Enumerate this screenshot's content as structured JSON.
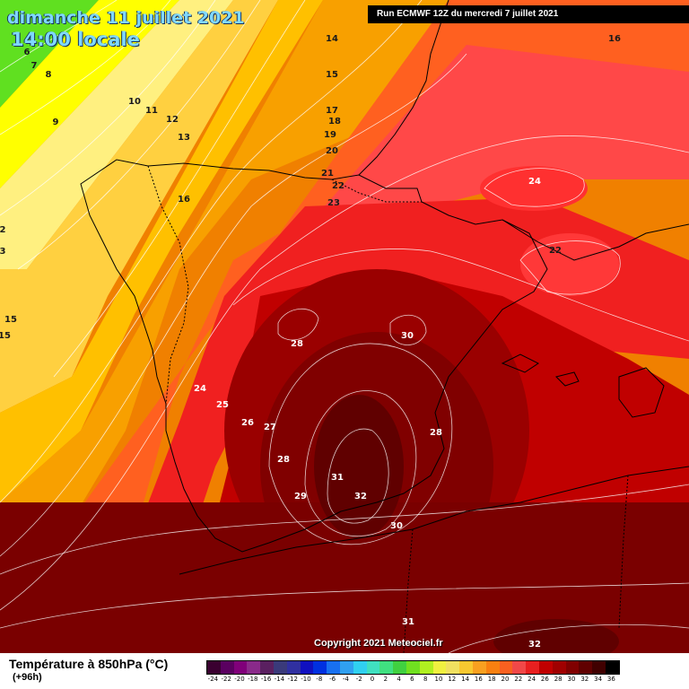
{
  "header": {
    "date": "dimanche 11 juillet 2021",
    "time": "14:00 locale",
    "run": "Run ECMWF 12Z du mercredi 7 juillet 2021"
  },
  "copyright": "Copyright 2021 Meteociel.fr",
  "legend": {
    "title": "Température à 850hPa (°C)",
    "subtitle": "(+96h)",
    "tick_labels": [
      "-24",
      "-22",
      "-20",
      "-18",
      "-16",
      "-14",
      "-12",
      "-10",
      "-8",
      "-6",
      "-4",
      "-2",
      "0",
      "2",
      "4",
      "6",
      "8",
      "10",
      "12",
      "14",
      "16",
      "18",
      "20",
      "22",
      "24",
      "26",
      "28",
      "30",
      "32",
      "34",
      "36"
    ],
    "colors": [
      "#3a0030",
      "#5a0060",
      "#80007a",
      "#8a2a8a",
      "#5a2060",
      "#3a3a7a",
      "#3030a0",
      "#1010c0",
      "#0030e0",
      "#1870f0",
      "#30a0f0",
      "#30d0f0",
      "#40e0c0",
      "#40e080",
      "#40d040",
      "#70e020",
      "#b0f020",
      "#f0f040",
      "#f0e060",
      "#f8c830",
      "#f8a020",
      "#f88010",
      "#f86020",
      "#f04848",
      "#e82020",
      "#c00000",
      "#a00000",
      "#800000",
      "#600000",
      "#400000",
      "#000000"
    ]
  },
  "contour_labels": [
    {
      "text": "6"
    },
    {
      "text": "7"
    },
    {
      "text": "8"
    },
    {
      "text": "9"
    },
    {
      "text": "10"
    },
    {
      "text": "11"
    },
    {
      "text": "12"
    },
    {
      "text": "13"
    },
    {
      "text": "14"
    },
    {
      "text": "15"
    },
    {
      "text": "16"
    },
    {
      "text": "16"
    },
    {
      "text": "17"
    },
    {
      "text": "18"
    },
    {
      "text": "19"
    },
    {
      "text": "20"
    },
    {
      "text": "21"
    },
    {
      "text": "22"
    },
    {
      "text": "23"
    },
    {
      "text": "24"
    },
    {
      "text": "22"
    },
    {
      "text": "2"
    },
    {
      "text": "3"
    },
    {
      "text": "15"
    },
    {
      "text": "15"
    },
    {
      "text": "24"
    },
    {
      "text": "25"
    },
    {
      "text": "26"
    },
    {
      "text": "27"
    },
    {
      "text": "28"
    },
    {
      "text": "28"
    },
    {
      "text": "29"
    },
    {
      "text": "30"
    },
    {
      "text": "31"
    },
    {
      "text": "32"
    },
    {
      "text": "30"
    },
    {
      "text": "28"
    },
    {
      "text": "31"
    },
    {
      "text": "32"
    }
  ]
}
